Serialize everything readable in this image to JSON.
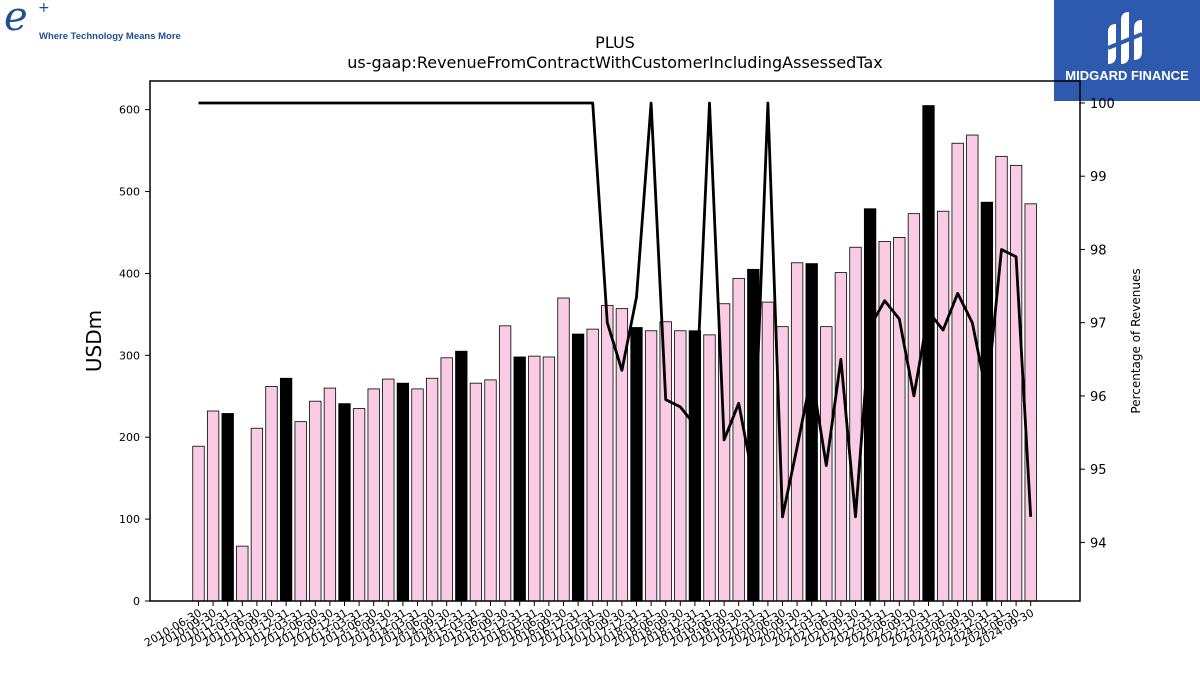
{
  "branding": {
    "left_logo_letter": "e",
    "left_logo_plus": "+",
    "left_tagline": "Where Technology Means More",
    "right_logo_name": "MIDGARD FINANCE",
    "right_logo_bg": "#2d5aaf"
  },
  "colors": {
    "bar_pink": "#f9cce4",
    "bar_black": "#000000",
    "line": "#000000"
  },
  "chart_data": {
    "type": "bar",
    "title": "PLUS",
    "subtitle": "us-gaap:RevenueFromContractWithCustomerIncludingAssessedTax",
    "ylabel": "USDm",
    "y2label": "Percentage of Revenues",
    "ylim": [
      0,
      635
    ],
    "y2lim": [
      93.2,
      100.3
    ],
    "yticks": [
      0,
      100,
      200,
      300,
      400,
      500,
      600
    ],
    "y2ticks": [
      94,
      95,
      96,
      97,
      98,
      99,
      100
    ],
    "categories": [
      "2010-06-30",
      "2010-09-30",
      "2010-12-31",
      "2011-03-31",
      "2011-06-30",
      "2011-09-30",
      "2011-12-31",
      "2012-03-31",
      "2012-06-30",
      "2012-09-30",
      "2012-12-31",
      "2013-03-31",
      "2013-06-30",
      "2013-09-30",
      "2013-12-31",
      "2014-03-31",
      "2014-06-30",
      "2014-09-30",
      "2014-12-31",
      "2015-03-31",
      "2015-06-30",
      "2015-09-30",
      "2015-12-31",
      "2016-03-31",
      "2016-06-30",
      "2016-09-30",
      "2016-12-31",
      "2017-03-31",
      "2017-06-30",
      "2017-09-30",
      "2017-12-31",
      "2018-03-31",
      "2018-06-30",
      "2018-09-30",
      "2018-12-31",
      "2019-03-31",
      "2019-06-30",
      "2019-09-30",
      "2019-12-31",
      "2020-03-31",
      "2020-06-30",
      "2020-09-30",
      "2020-12-31",
      "2021-03-31",
      "2021-06-30",
      "2021-09-30",
      "2021-12-31",
      "2022-03-31",
      "2022-06-30",
      "2022-09-30",
      "2022-12-31",
      "2023-03-31",
      "2023-06-30",
      "2023-09-30",
      "2023-12-31",
      "2024-03-31",
      "2024-06-30",
      "2024-09-30"
    ],
    "series": [
      {
        "kind": "bar",
        "values": [
          189,
          232,
          229,
          67,
          211,
          262,
          272,
          219,
          244,
          260,
          241,
          235,
          259,
          271,
          266,
          259,
          272,
          297,
          305,
          266,
          270,
          336,
          298,
          299,
          298,
          370,
          326,
          332,
          361,
          357,
          334,
          330,
          341,
          330,
          330,
          325,
          363,
          394,
          405,
          365,
          335,
          413,
          412,
          335,
          401,
          432,
          479,
          439,
          444,
          473,
          605,
          476,
          559,
          569,
          487,
          543,
          532,
          485
        ],
        "colors": [
          "pink",
          "pink",
          "black",
          "pink",
          "pink",
          "pink",
          "black",
          "pink",
          "pink",
          "pink",
          "black",
          "pink",
          "pink",
          "pink",
          "black",
          "pink",
          "pink",
          "pink",
          "black",
          "pink",
          "pink",
          "pink",
          "black",
          "pink",
          "pink",
          "pink",
          "black",
          "pink",
          "pink",
          "pink",
          "black",
          "pink",
          "pink",
          "pink",
          "black",
          "pink",
          "pink",
          "pink",
          "black",
          "pink",
          "pink",
          "pink",
          "black",
          "pink",
          "pink",
          "pink",
          "black",
          "pink",
          "pink",
          "pink",
          "black",
          "pink",
          "pink",
          "pink",
          "black",
          "pink",
          "pink",
          "pink"
        ]
      },
      {
        "kind": "line",
        "axis": "right",
        "values": [
          100,
          100,
          100,
          100,
          100,
          100,
          100,
          100,
          100,
          100,
          100,
          100,
          100,
          100,
          100,
          100,
          100,
          100,
          100,
          100,
          100,
          100,
          100,
          100,
          100,
          100,
          100,
          100,
          97.0,
          96.35,
          97.35,
          100,
          95.95,
          95.85,
          95.6,
          100,
          95.4,
          95.9,
          94.85,
          100,
          94.35,
          95.3,
          96.3,
          95.05,
          96.5,
          94.35,
          96.95,
          97.3,
          97.05,
          96.0,
          97.15,
          96.9,
          97.4,
          97.0,
          96.0,
          98.0,
          97.9,
          94.35
        ]
      }
    ]
  }
}
